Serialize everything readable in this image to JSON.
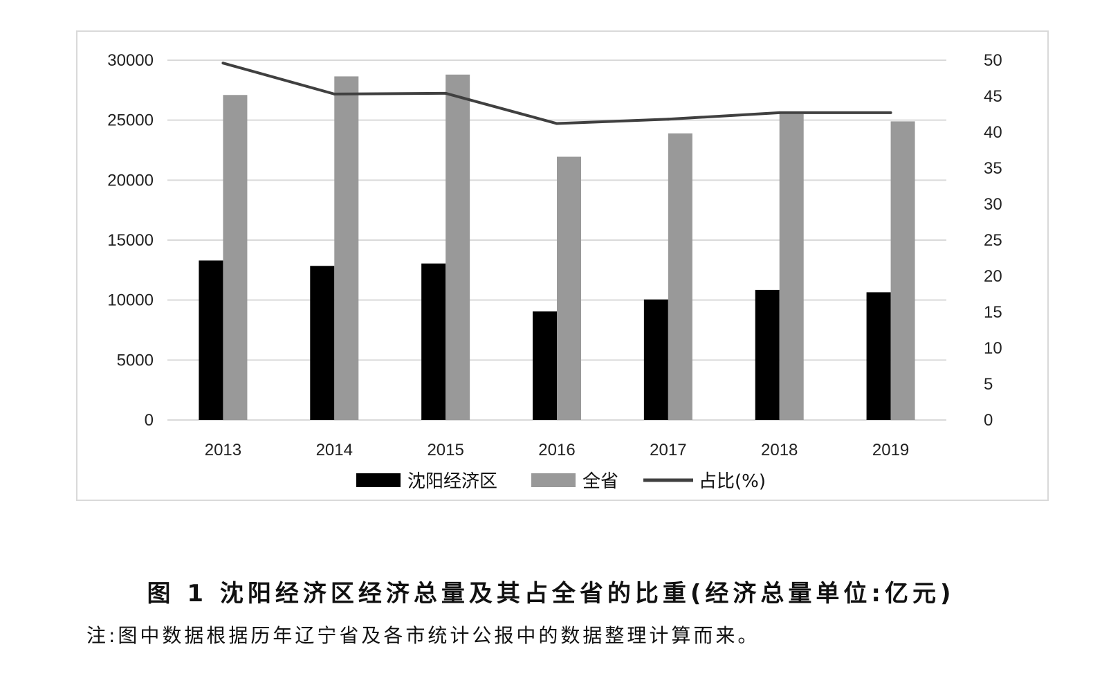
{
  "chart_data": {
    "type": "bar",
    "categories": [
      "2013",
      "2014",
      "2015",
      "2016",
      "2017",
      "2018",
      "2019"
    ],
    "series": [
      {
        "name": "沈阳经济区",
        "type": "bar",
        "axis": "left",
        "color": "#000000",
        "values": [
          13300,
          12850,
          13050,
          9050,
          10050,
          10850,
          10650
        ]
      },
      {
        "name": "全省",
        "type": "bar",
        "axis": "left",
        "color": "#999999",
        "values": [
          27100,
          28650,
          28800,
          21950,
          23900,
          25500,
          24900
        ]
      },
      {
        "name": "占比(%)",
        "type": "line",
        "axis": "right",
        "color": "#404040",
        "values": [
          49.6,
          45.3,
          45.4,
          41.2,
          41.8,
          42.7,
          42.7
        ]
      }
    ],
    "y_left": {
      "ticks": [
        "0",
        "5000",
        "10000",
        "15000",
        "20000",
        "25000",
        "30000"
      ],
      "ylim": [
        0,
        30000
      ]
    },
    "y_right": {
      "ticks": [
        "0",
        "5",
        "10",
        "15",
        "20",
        "25",
        "30",
        "35",
        "40",
        "45",
        "50"
      ],
      "ylim": [
        0,
        50
      ]
    },
    "grid": true,
    "legend_position": "bottom"
  },
  "caption": "图 1  沈阳经济区经济总量及其占全省的比重(经济总量单位:亿元)",
  "note": "注:图中数据根据历年辽宁省及各市统计公报中的数据整理计算而来。"
}
